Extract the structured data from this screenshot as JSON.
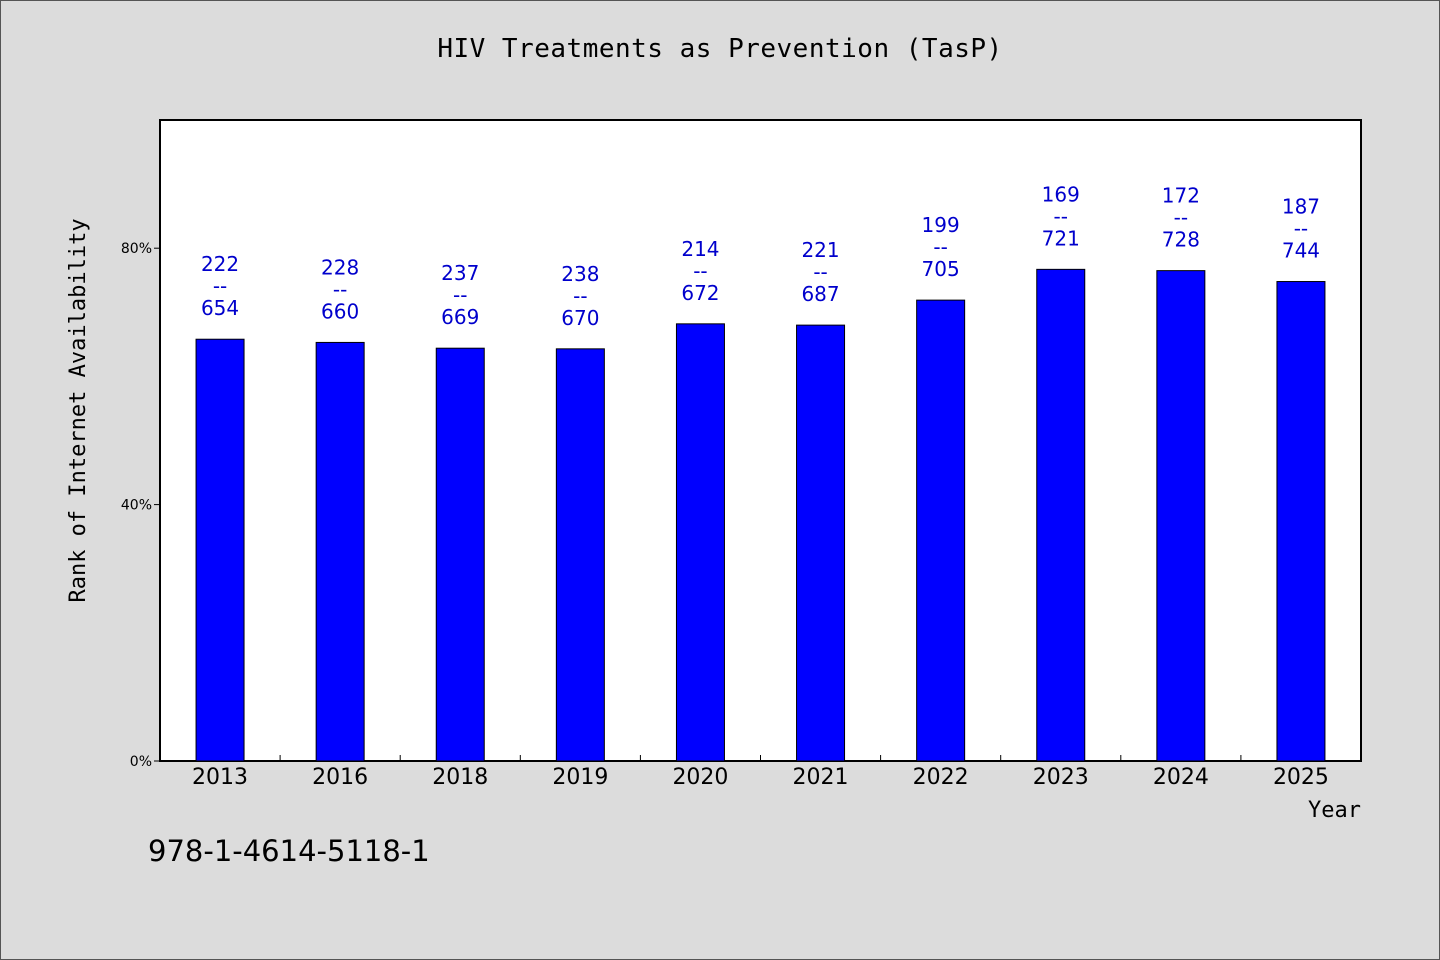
{
  "chart_data": {
    "type": "bar",
    "title": "HIV Treatments as Prevention (TasP)",
    "xlabel": "Year",
    "ylabel": "Rank of Internet Availability",
    "categories": [
      "2013",
      "2016",
      "2018",
      "2019",
      "2020",
      "2021",
      "2022",
      "2023",
      "2024",
      "2025"
    ],
    "values": [
      65.8,
      65.3,
      64.4,
      64.3,
      68.2,
      68.0,
      71.9,
      76.7,
      76.5,
      74.8
    ],
    "ylim": [
      0,
      100
    ],
    "yticks": [
      0,
      40,
      80
    ],
    "ytick_labels": [
      "0%",
      "40%",
      "80%"
    ],
    "data_labels": [
      {
        "top": "222",
        "sep": "--",
        "bottom": "654"
      },
      {
        "top": "228",
        "sep": "--",
        "bottom": "660"
      },
      {
        "top": "237",
        "sep": "--",
        "bottom": "669"
      },
      {
        "top": "238",
        "sep": "--",
        "bottom": "670"
      },
      {
        "top": "214",
        "sep": "--",
        "bottom": "672"
      },
      {
        "top": "221",
        "sep": "--",
        "bottom": "687"
      },
      {
        "top": "199",
        "sep": "--",
        "bottom": "705"
      },
      {
        "top": "169",
        "sep": "--",
        "bottom": "721"
      },
      {
        "top": "172",
        "sep": "--",
        "bottom": "728"
      },
      {
        "top": "187",
        "sep": "--",
        "bottom": "744"
      }
    ],
    "bar_color": "#0000ff",
    "label_color": "#0000cc",
    "grid": false
  },
  "footer": {
    "code": "978-1-4614-5118-1"
  }
}
